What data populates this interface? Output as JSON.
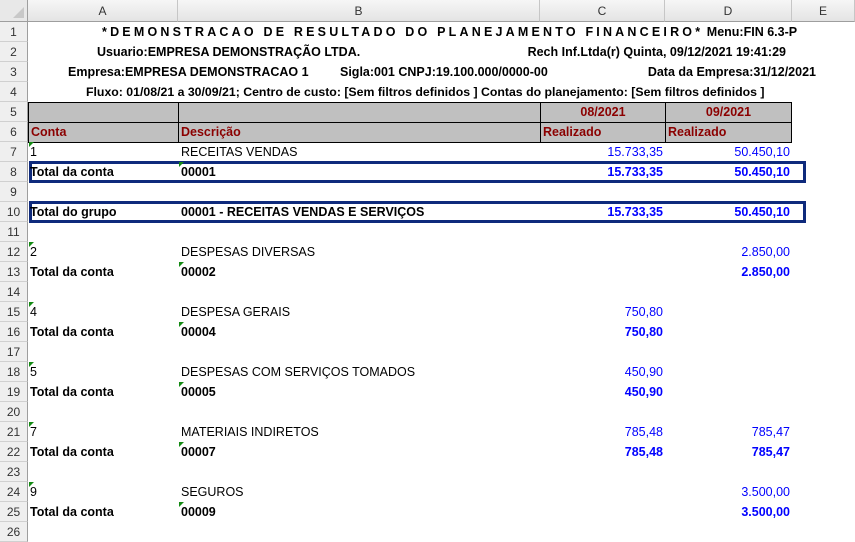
{
  "columns": [
    "A",
    "B",
    "C",
    "D",
    "E"
  ],
  "header": {
    "title": "*DEMONSTRACAO DE RESULTADO DO PLANEJAMENTO FINANCEIRO*",
    "menu": "Menu:FIN 6.3-P",
    "usuario": "Usuario:EMPRESA DEMONSTRAÇÃO LTDA.",
    "rech": "Rech Inf.Ltda(r)  Quinta, 09/12/2021 19:41:29",
    "empresa": "Empresa:EMPRESA DEMONSTRACAO 1",
    "sigla": "Sigla:001   CNPJ:19.100.000/0000-00",
    "data_empresa": "Data da Empresa:31/12/2021",
    "fluxo": "Fluxo: 01/08/21 a 30/09/21; Centro de custo: [Sem filtros definidos ] Contas do planejamento: [Sem filtros definidos ]"
  },
  "table_header": {
    "period_c": "08/2021",
    "period_d": "09/2021",
    "conta": "Conta",
    "descricao": "Descrição",
    "realizado_c": "Realizado",
    "realizado_d": "Realizado"
  },
  "rows": [
    {
      "n": 7,
      "a": "1",
      "b": "RECEITAS VENDAS",
      "c": "15.733,35",
      "d": "50.450,10",
      "bold": false,
      "markA": true
    },
    {
      "n": 8,
      "a": "Total da conta",
      "b": "00001",
      "c": "15.733,35",
      "d": "50.450,10",
      "bold": true,
      "markB": true,
      "boxed": true
    },
    {
      "n": 9
    },
    {
      "n": 10,
      "a": "Total do grupo",
      "b": "00001 - RECEITAS VENDAS E SERVIÇOS",
      "c": "15.733,35",
      "d": "50.450,10",
      "bold": true,
      "boxed": true
    },
    {
      "n": 11
    },
    {
      "n": 12,
      "a": "2",
      "b": "DESPESAS DIVERSAS",
      "c": "",
      "d": "2.850,00",
      "bold": false,
      "markA": true
    },
    {
      "n": 13,
      "a": "Total da conta",
      "b": "00002",
      "c": "",
      "d": "2.850,00",
      "bold": true,
      "markB": true
    },
    {
      "n": 14
    },
    {
      "n": 15,
      "a": "4",
      "b": "DESPESA GERAIS",
      "c": "750,80",
      "d": "",
      "bold": false,
      "markA": true
    },
    {
      "n": 16,
      "a": "Total da conta",
      "b": "00004",
      "c": "750,80",
      "d": "",
      "bold": true,
      "markB": true
    },
    {
      "n": 17
    },
    {
      "n": 18,
      "a": "5",
      "b": "DESPESAS COM SERVIÇOS TOMADOS",
      "c": "450,90",
      "d": "",
      "bold": false,
      "markA": true
    },
    {
      "n": 19,
      "a": "Total da conta",
      "b": "00005",
      "c": "450,90",
      "d": "",
      "bold": true,
      "markB": true
    },
    {
      "n": 20
    },
    {
      "n": 21,
      "a": "7",
      "b": "MATERIAIS INDIRETOS",
      "c": "785,48",
      "d": "785,47",
      "bold": false,
      "markA": true
    },
    {
      "n": 22,
      "a": "Total da conta",
      "b": "00007",
      "c": "785,48",
      "d": "785,47",
      "bold": true,
      "markB": true
    },
    {
      "n": 23
    },
    {
      "n": 24,
      "a": "9",
      "b": "SEGUROS",
      "c": "",
      "d": "3.500,00",
      "bold": false,
      "markA": true
    },
    {
      "n": 25,
      "a": "Total da conta",
      "b": "00009",
      "c": "",
      "d": "3.500,00",
      "bold": true,
      "markB": true
    },
    {
      "n": 26
    }
  ]
}
